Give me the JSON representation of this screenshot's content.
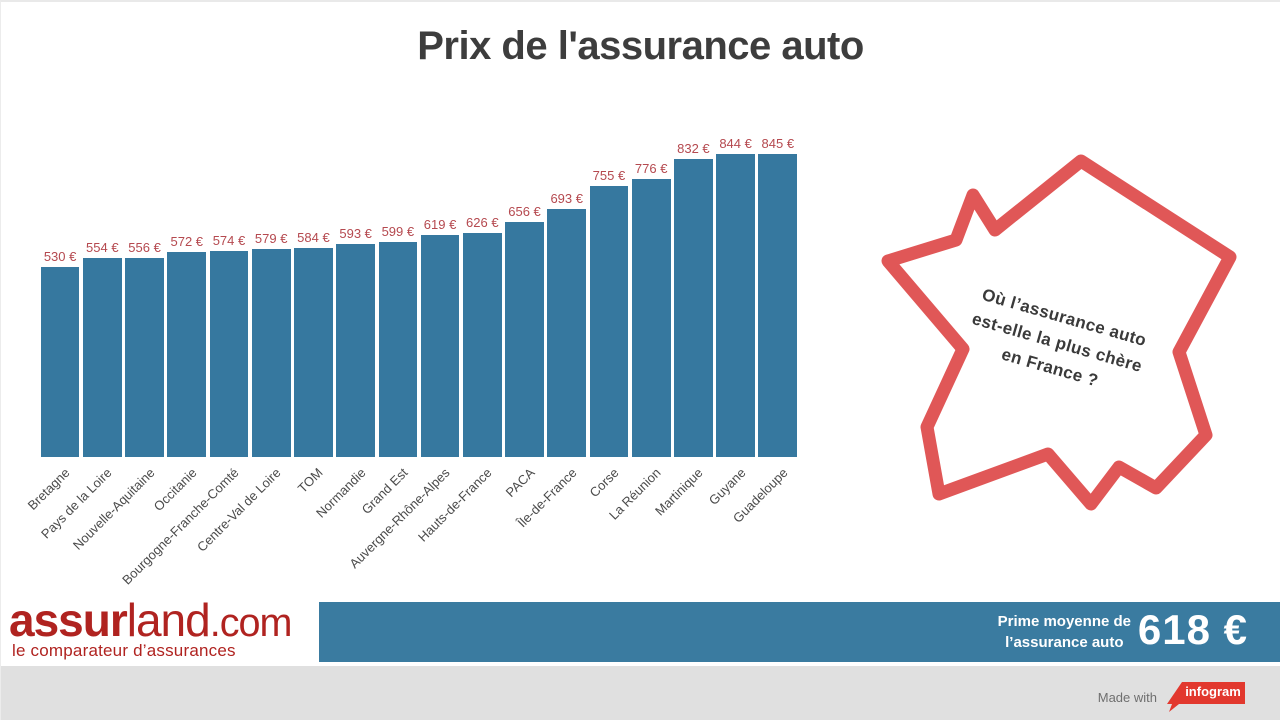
{
  "title": "Prix de l'assurance auto",
  "chart_data": {
    "type": "bar",
    "title": "Prix de l'assurance auto",
    "categories": [
      "Bretagne",
      "Pays de la Loire",
      "Nouvelle-Aquitaine",
      "Occitanie",
      "Bourgogne-Franche-Comté",
      "Centre-Val de Loire",
      "TOM",
      "Normandie",
      "Grand Est",
      "Auvergne-Rhône-Alpes",
      "Hauts-de-France",
      "PACA",
      "Île-de-France",
      "Corse",
      "La Réunion",
      "Martinique",
      "Guyane",
      "Guadeloupe"
    ],
    "values": [
      530,
      554,
      556,
      572,
      574,
      579,
      584,
      593,
      599,
      619,
      626,
      656,
      693,
      755,
      776,
      832,
      844,
      845
    ],
    "value_suffix": " €",
    "xlabel": "",
    "ylabel": "",
    "ylim": [
      0,
      845
    ],
    "grid": false,
    "legend": "none",
    "bar_color": "#36789f",
    "value_label_color": "#b5494f"
  },
  "map": {
    "question_line1": "Où l’assurance auto",
    "question_line2": "est-elle la plus chère",
    "question_line3": "en France ?",
    "outline_color": "#e05757",
    "text_color": "#3a3a3a"
  },
  "footer": {
    "logo_part1": "assur",
    "logo_part2": "land",
    "logo_part3": ".com",
    "tagline": "le comparateur d’assurances",
    "logo_color": "#b02320",
    "bar_color": "#3a7ba0",
    "stat_label_line1": "Prime moyenne de",
    "stat_label_line2": "l’assurance auto",
    "stat_value": "618 €"
  },
  "credit": {
    "made_with": "Made with",
    "brand": "infogram",
    "badge_color": "#e2382e"
  }
}
